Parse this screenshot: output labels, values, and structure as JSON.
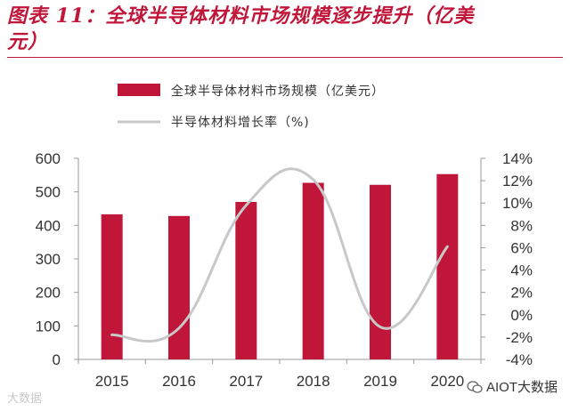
{
  "header": {
    "title_line1": "图表 11：全球半导体材料市场规模逐步提升（亿美",
    "title_line2": "元）"
  },
  "chart_data": {
    "type": "bar",
    "categories": [
      "2015",
      "2016",
      "2017",
      "2018",
      "2019",
      "2020"
    ],
    "series": [
      {
        "name": "全球半导体材料市场规模（亿美元）",
        "type": "bar",
        "axis": "left",
        "values": [
          433,
          428,
          470,
          527,
          521,
          553
        ]
      },
      {
        "name": "半导体材料增长率（%)",
        "type": "line",
        "axis": "right",
        "values": [
          -1.8,
          -1.2,
          9.8,
          12.1,
          -1.1,
          6.1
        ]
      }
    ],
    "y_left": {
      "ylim": [
        0,
        600
      ],
      "ticks": [
        "0",
        "100",
        "200",
        "300",
        "400",
        "500",
        "600"
      ]
    },
    "y_right": {
      "ylim": [
        -4,
        14
      ],
      "ticks": [
        "-4%",
        "-2%",
        "0%",
        "2%",
        "4%",
        "6%",
        "8%",
        "10%",
        "12%",
        "14%"
      ]
    },
    "legend": "top-center",
    "colors": {
      "bar": "#c0163a",
      "line": "#c8c8c8"
    }
  },
  "watermark": {
    "left": "大数据",
    "right": "AIOT大数据"
  }
}
